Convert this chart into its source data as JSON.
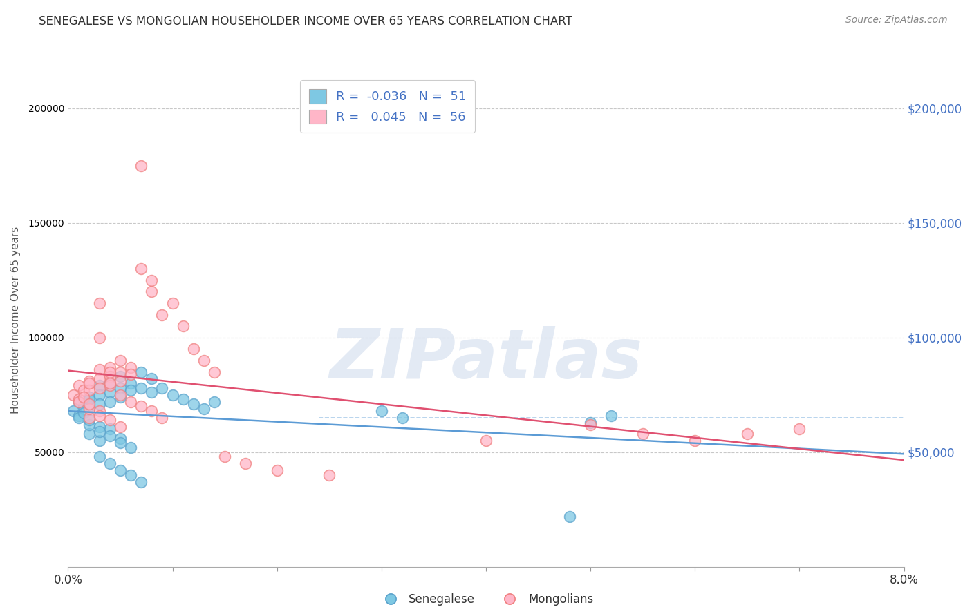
{
  "title": "SENEGALESE VS MONGOLIAN HOUSEHOLDER INCOME OVER 65 YEARS CORRELATION CHART",
  "source": "Source: ZipAtlas.com",
  "ylabel": "Householder Income Over 65 years",
  "xlim": [
    0.0,
    0.08
  ],
  "ylim": [
    0,
    215000
  ],
  "yticks": [
    50000,
    100000,
    150000,
    200000
  ],
  "ytick_labels": [
    "$50,000",
    "$100,000",
    "$150,000",
    "$200,000"
  ],
  "blue_color": "#7ec8e3",
  "pink_color": "#ffb6c8",
  "blue_edge_color": "#5ba3cc",
  "pink_edge_color": "#f08080",
  "blue_line_color": "#5b9bd5",
  "pink_line_color": "#e05070",
  "blue_R": -0.036,
  "pink_R": 0.045,
  "blue_N": 51,
  "pink_N": 56,
  "text_blue": "#4472c4",
  "text_pink": "#e05070",
  "senegalese_x": [
    0.0005,
    0.001,
    0.001,
    0.0015,
    0.001,
    0.002,
    0.002,
    0.0015,
    0.002,
    0.003,
    0.003,
    0.003,
    0.004,
    0.004,
    0.004,
    0.005,
    0.005,
    0.005,
    0.006,
    0.006,
    0.007,
    0.007,
    0.008,
    0.008,
    0.009,
    0.01,
    0.011,
    0.012,
    0.013,
    0.014,
    0.002,
    0.003,
    0.004,
    0.005,
    0.006,
    0.003,
    0.004,
    0.005,
    0.006,
    0.007,
    0.002,
    0.002,
    0.003,
    0.003,
    0.004,
    0.005,
    0.03,
    0.032,
    0.05,
    0.052,
    0.048
  ],
  "senegalese_y": [
    68000,
    66000,
    72000,
    70000,
    65000,
    74000,
    70000,
    67000,
    73000,
    79000,
    75000,
    71000,
    80000,
    76000,
    72000,
    83000,
    78000,
    74000,
    80000,
    77000,
    85000,
    78000,
    82000,
    76000,
    78000,
    75000,
    73000,
    71000,
    69000,
    72000,
    58000,
    55000,
    60000,
    56000,
    52000,
    48000,
    45000,
    42000,
    40000,
    37000,
    62000,
    64000,
    61000,
    59000,
    57000,
    54000,
    68000,
    65000,
    63000,
    66000,
    22000
  ],
  "mongolian_x": [
    0.0005,
    0.001,
    0.001,
    0.0015,
    0.001,
    0.002,
    0.002,
    0.0015,
    0.002,
    0.003,
    0.003,
    0.003,
    0.004,
    0.004,
    0.004,
    0.005,
    0.005,
    0.005,
    0.006,
    0.006,
    0.007,
    0.007,
    0.008,
    0.008,
    0.009,
    0.01,
    0.011,
    0.012,
    0.013,
    0.014,
    0.002,
    0.003,
    0.003,
    0.004,
    0.004,
    0.005,
    0.006,
    0.007,
    0.008,
    0.009,
    0.002,
    0.002,
    0.003,
    0.003,
    0.004,
    0.005,
    0.015,
    0.017,
    0.02,
    0.025,
    0.05,
    0.055,
    0.06,
    0.065,
    0.07,
    0.04
  ],
  "mongolian_y": [
    75000,
    73000,
    79000,
    77000,
    72000,
    81000,
    77000,
    74000,
    80000,
    86000,
    82000,
    78000,
    87000,
    83000,
    79000,
    90000,
    85000,
    81000,
    87000,
    84000,
    175000,
    130000,
    125000,
    120000,
    110000,
    115000,
    105000,
    95000,
    90000,
    85000,
    65000,
    100000,
    115000,
    85000,
    80000,
    75000,
    72000,
    70000,
    68000,
    65000,
    69000,
    71000,
    68000,
    66000,
    64000,
    61000,
    48000,
    45000,
    42000,
    40000,
    62000,
    58000,
    55000,
    58000,
    60000,
    55000
  ]
}
